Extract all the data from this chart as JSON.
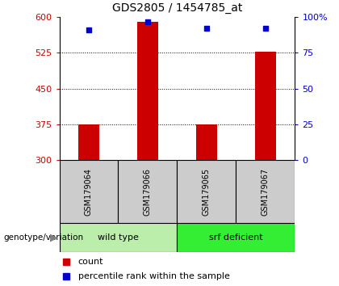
{
  "title": "GDS2805 / 1454785_at",
  "samples": [
    "GSM179064",
    "GSM179066",
    "GSM179065",
    "GSM179067"
  ],
  "count_values": [
    375,
    590,
    375,
    527
  ],
  "percentile_values": [
    91,
    97,
    92,
    92
  ],
  "y_min": 300,
  "y_max": 600,
  "y_ticks": [
    300,
    375,
    450,
    525,
    600
  ],
  "right_y_ticks": [
    0,
    25,
    50,
    75,
    100
  ],
  "bar_color": "#cc0000",
  "point_color": "#0000cc",
  "groups": [
    {
      "label": "wild type",
      "color": "#bbeeaa",
      "indices": [
        0,
        1
      ]
    },
    {
      "label": "srf deficient",
      "color": "#33ee33",
      "indices": [
        2,
        3
      ]
    }
  ],
  "group_label_prefix": "genotype/variation",
  "legend_count_label": "count",
  "legend_percentile_label": "percentile rank within the sample",
  "sample_box_color": "#cccccc",
  "plot_bg_color": "#ffffff",
  "outer_bg_color": "#ffffff",
  "title_fontsize": 10,
  "tick_fontsize": 8,
  "bar_width": 0.35
}
